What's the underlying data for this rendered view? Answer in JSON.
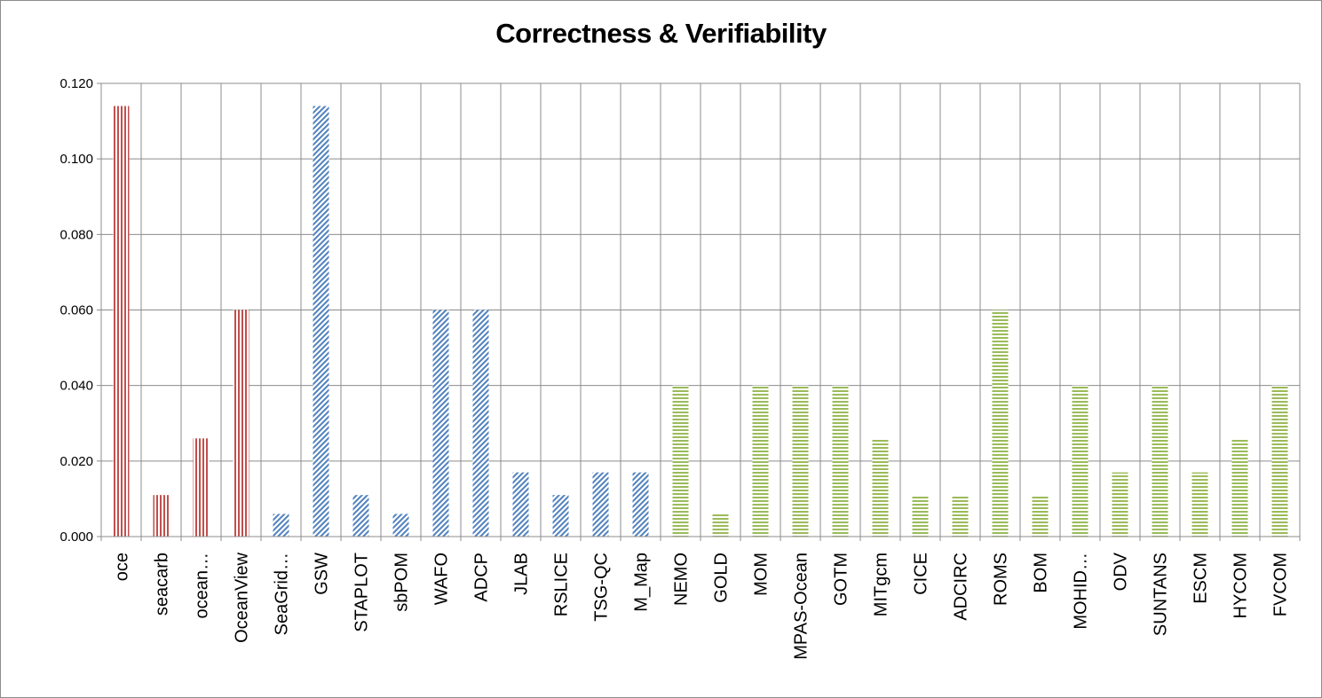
{
  "chart_data": {
    "type": "bar",
    "title": "Correctness & Verifiability",
    "xlabel": "",
    "ylabel": "",
    "ylim": [
      0,
      0.12
    ],
    "yticks": [
      "0.000",
      "0.020",
      "0.040",
      "0.060",
      "0.080",
      "0.100",
      "0.120"
    ],
    "grid": true,
    "legend": "none",
    "categories": [
      "oce",
      "seacarb",
      "ocean…",
      "OceanView",
      "SeaGrid…",
      "GSW",
      "STAPLOT",
      "sbPOM",
      "WAFO",
      "ADCP",
      "JLAB",
      "RSLICE",
      "TSG-QC",
      "M_Map",
      "NEMO",
      "GOLD",
      "MOM",
      "MPAS-Ocean",
      "GOTM",
      "MITgcm",
      "CICE",
      "ADCIRC",
      "ROMS",
      "BOM",
      "MOHID…",
      "ODV",
      "SUNTANS",
      "ESCM",
      "HYCOM",
      "FVCOM"
    ],
    "values": [
      0.114,
      0.011,
      0.026,
      0.06,
      0.006,
      0.114,
      0.011,
      0.006,
      0.06,
      0.06,
      0.017,
      0.011,
      0.017,
      0.017,
      0.04,
      0.006,
      0.04,
      0.04,
      0.04,
      0.026,
      0.011,
      0.011,
      0.06,
      0.011,
      0.04,
      0.017,
      0.04,
      0.017,
      0.026,
      0.04
    ],
    "groups": [
      0,
      0,
      0,
      0,
      1,
      1,
      1,
      1,
      1,
      1,
      1,
      1,
      1,
      1,
      2,
      2,
      2,
      2,
      2,
      2,
      2,
      2,
      2,
      2,
      2,
      2,
      2,
      2,
      2,
      2
    ],
    "group_styles": [
      {
        "pattern": "vertical-lines",
        "color": "#c0504d"
      },
      {
        "pattern": "diagonal-lines",
        "color": "#4f81bd"
      },
      {
        "pattern": "horizontal-lines",
        "color": "#9bbb59"
      }
    ],
    "gridline_color": "#8c8c8c"
  }
}
